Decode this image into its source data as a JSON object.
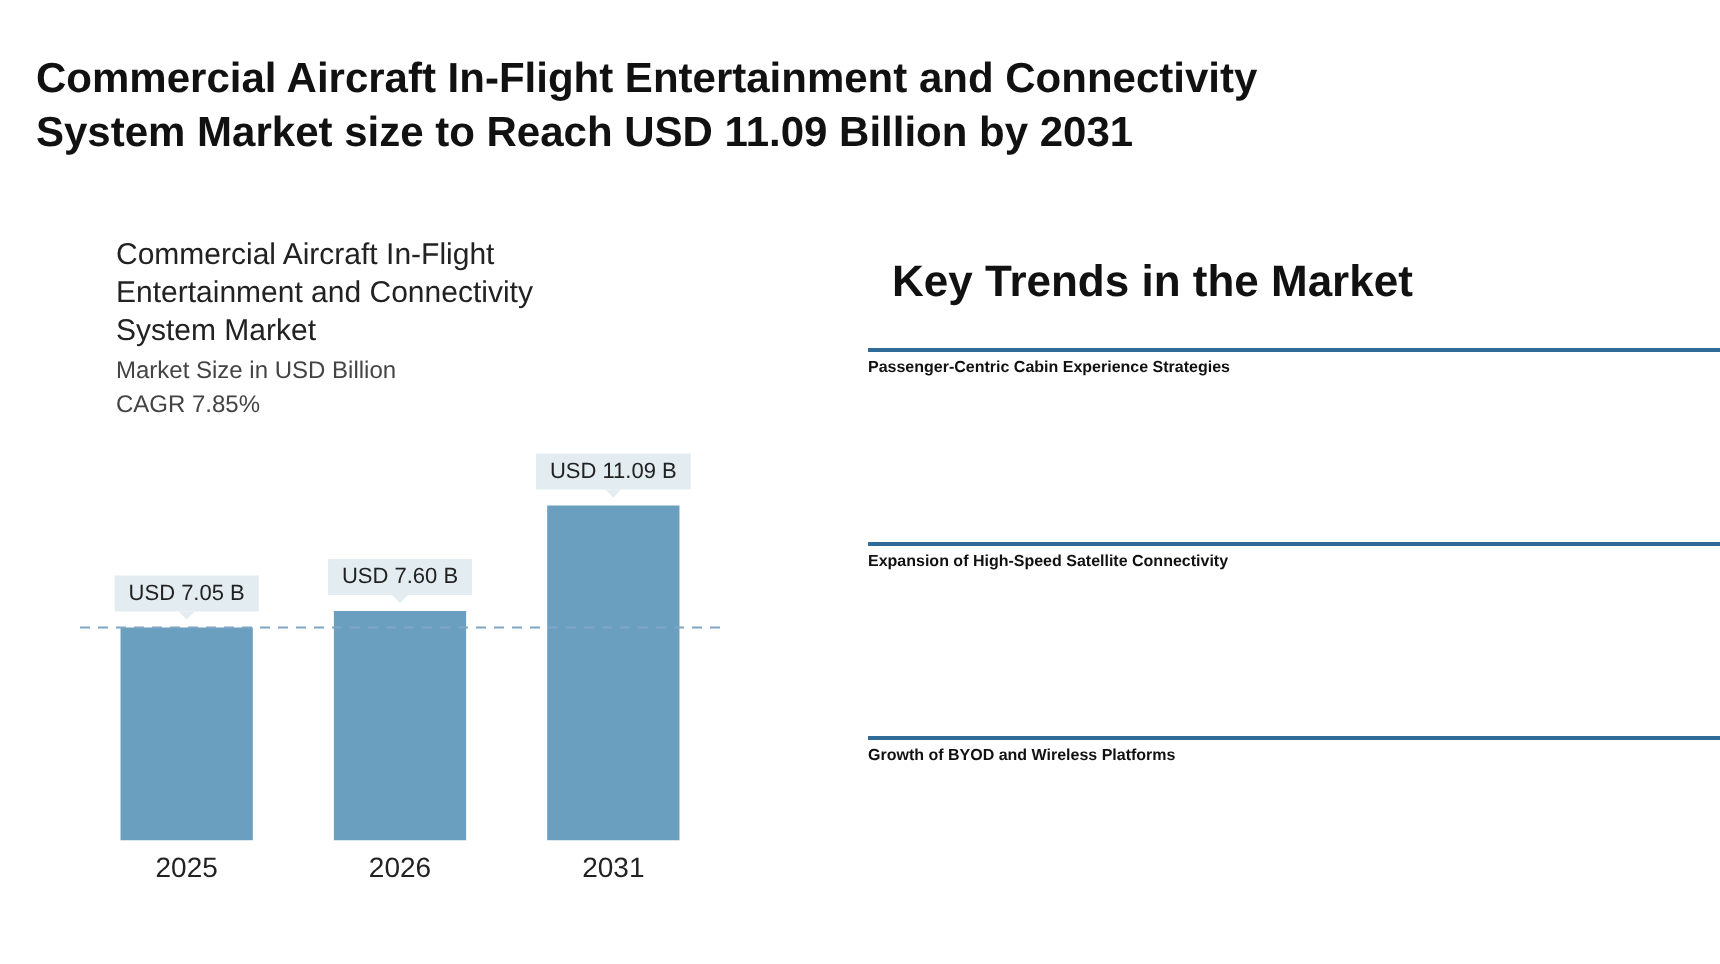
{
  "chart_data": [
    {
      "type": "other",
      "title": "Commercial Aircraft In-Flight Entertainment and Connectivity System Market size to Reach USD 11.09 Billion by 2031"
    },
    {
      "type": "bar",
      "title": "Commercial Aircraft In-Flight Entertainment and Connectivity System Market",
      "subtitle": "Market Size in USD Billion",
      "annotations": [
        "CAGR 7.85%"
      ],
      "categories": [
        "2025",
        "2026",
        "2031"
      ],
      "values": [
        7.05,
        7.6,
        11.09
      ],
      "color": "#6a9fc0",
      "value_labels": [
        "USD 7.05 B",
        "USD 7.60 B",
        "USD 11.09 B"
      ],
      "ref_lines": [
        {
          "axis": "y",
          "value": 7.05,
          "color": "#7fa6c4",
          "line_style": "dashed"
        }
      ],
      "grid": false,
      "legend": false
    },
    {
      "type": "other",
      "title": "Key Trends in the Market",
      "annotations": [
        "Passenger-Centric Cabin Experience Strategies",
        "Expansion of High-Speed Satellite Connectivity",
        "Growth of BYOD and Wireless Platforms"
      ]
    }
  ]
}
